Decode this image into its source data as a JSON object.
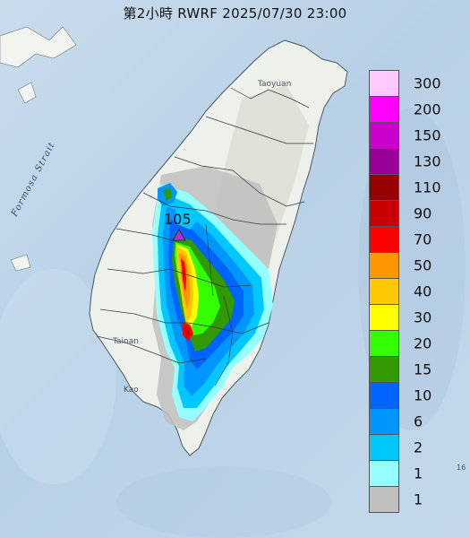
{
  "title": "第2小時  RWRF 2025/07/30 23:00",
  "places": {
    "strait": "Formosa Strait",
    "taoyuan": "Taoyuan",
    "tainan": "Tainan",
    "kaohsiung": "Kao",
    "right_edge": "16"
  },
  "max_marker": {
    "value": "105",
    "color": "#b030d8"
  },
  "legend": [
    {
      "label": "300",
      "color": "#ffc8ff"
    },
    {
      "label": "200",
      "color": "#ff00ff"
    },
    {
      "label": "150",
      "color": "#cc00cc"
    },
    {
      "label": "130",
      "color": "#990099"
    },
    {
      "label": "110",
      "color": "#960000"
    },
    {
      "label": "90",
      "color": "#c80000"
    },
    {
      "label": "70",
      "color": "#ff0000"
    },
    {
      "label": "50",
      "color": "#ff9600"
    },
    {
      "label": "40",
      "color": "#ffc800"
    },
    {
      "label": "30",
      "color": "#ffff00"
    },
    {
      "label": "20",
      "color": "#33ff00"
    },
    {
      "label": "15",
      "color": "#339900"
    },
    {
      "label": "10",
      "color": "#0064ff"
    },
    {
      "label": "6",
      "color": "#0096ff"
    },
    {
      "label": "2",
      "color": "#00c8ff"
    },
    {
      "label": "1",
      "color": "#96ffff"
    },
    {
      "label": "1",
      "color": "#c0c0c0"
    }
  ]
}
